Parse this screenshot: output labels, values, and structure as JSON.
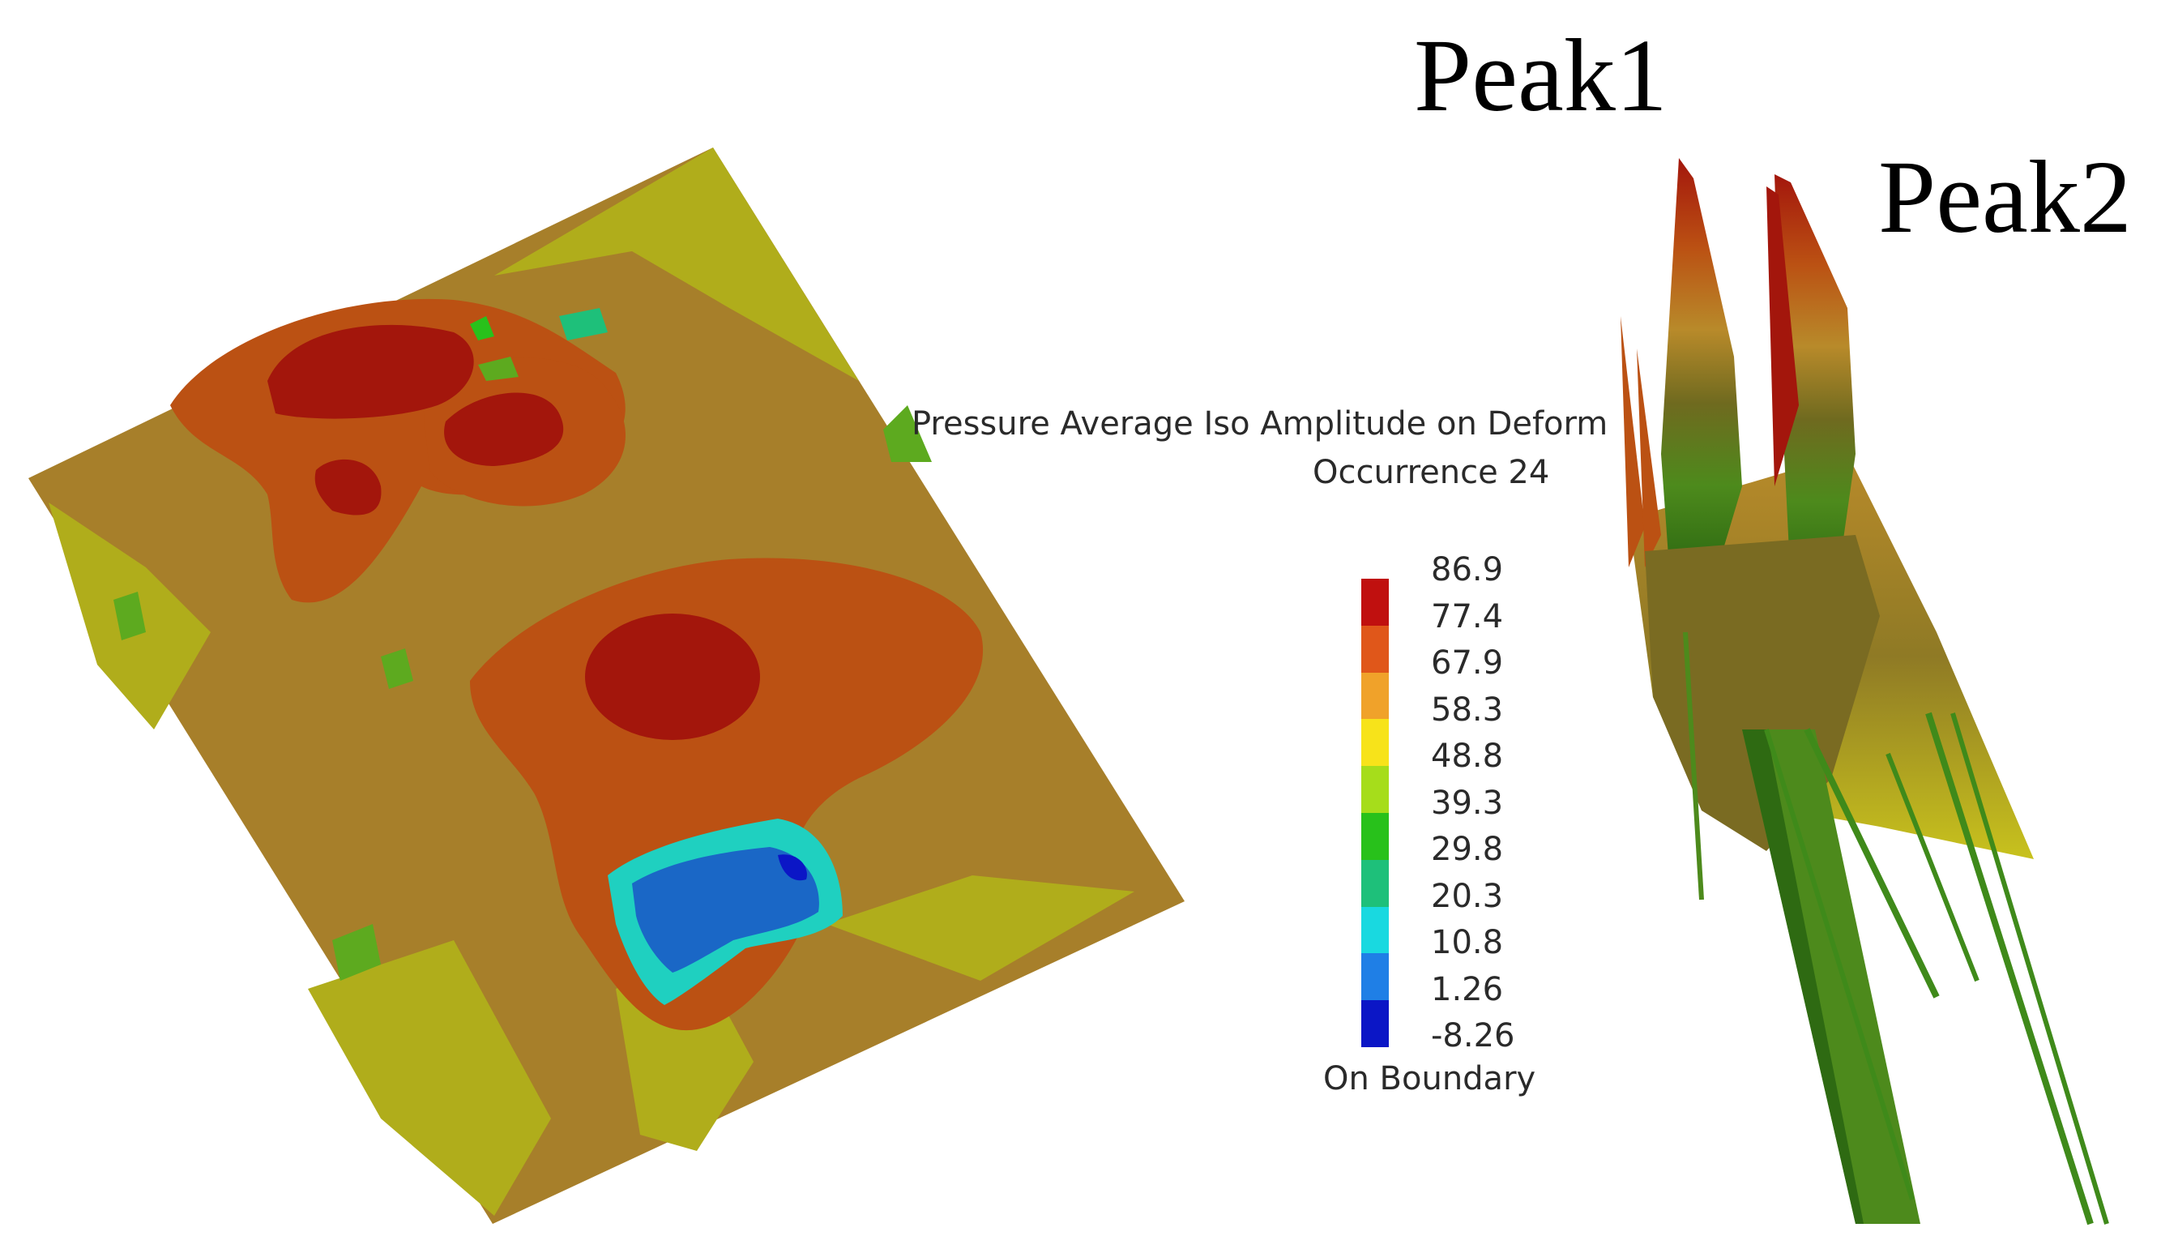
{
  "labels": {
    "peak1": "Peak1",
    "peak2": "Peak2"
  },
  "legend": {
    "title": "Pressure Average Iso Amplitude on Deform",
    "subtitle": "Occurrence 24",
    "footer": "On Boundary",
    "ticks": [
      "86.9",
      "77.4",
      "67.9",
      "58.3",
      "48.8",
      "39.3",
      "29.8",
      "20.3",
      "10.8",
      "1.26",
      "-8.26"
    ],
    "colors": [
      "#c0100f",
      "#e0571a",
      "#f0a22a",
      "#f7e31a",
      "#a6dd1b",
      "#28c11b",
      "#1ec07a",
      "#19d9e0",
      "#1f7fe6",
      "#0b16c6"
    ]
  },
  "colors": {
    "plate_base": "#a77f2a",
    "plate_orange": "#bb5113",
    "plate_red": "#a3160c",
    "plate_yellow": "#b0ad1b",
    "plate_green": "#5daa1f",
    "plate_blue": "#1a67c6"
  }
}
